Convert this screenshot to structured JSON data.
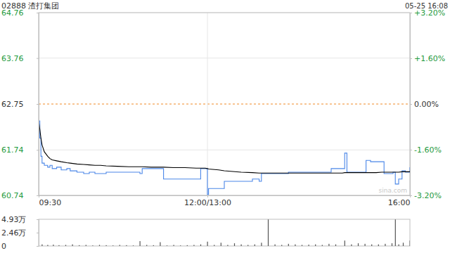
{
  "chart_data": [
    {
      "type": "line",
      "title": "02888 渣打集团",
      "subtitle": "05-25 16:08",
      "annotation": "sina.com",
      "x": [
        0,
        1,
        2,
        3,
        5,
        8,
        10,
        12,
        16,
        20,
        25,
        28,
        34,
        40,
        45,
        50,
        55,
        60,
        70,
        80,
        90,
        92,
        100,
        108,
        111,
        120,
        130,
        140,
        144,
        148,
        150,
        151,
        160,
        165,
        180,
        190,
        196,
        198,
        210,
        222,
        240,
        255,
        260,
        265,
        270,
        272,
        274,
        285,
        290,
        291,
        295,
        300,
        305,
        307,
        312,
        315,
        317,
        320,
        323,
        326,
        330
      ],
      "series": [
        {
          "color": "#4a86e8",
          "values": [
            62.38,
            62.0,
            61.6,
            61.45,
            61.4,
            61.36,
            61.4,
            61.33,
            61.36,
            61.3,
            61.33,
            61.28,
            61.25,
            61.22,
            61.25,
            61.22,
            61.22,
            61.25,
            61.25,
            61.25,
            61.22,
            61.33,
            61.33,
            61.33,
            61.1,
            61.1,
            61.1,
            61.1,
            61.33,
            61.33,
            60.76,
            60.89,
            60.89,
            61.05,
            61.05,
            61.1,
            61.05,
            61.22,
            61.22,
            61.25,
            61.25,
            61.25,
            61.33,
            61.33,
            61.33,
            61.67,
            61.25,
            61.25,
            61.25,
            61.51,
            61.48,
            61.48,
            61.48,
            61.22,
            61.22,
            61.25,
            60.99,
            61.1,
            61.28,
            61.25,
            61.36
          ]
        },
        {
          "color": "#000000",
          "values": [
            62.38,
            62.2,
            62.0,
            61.85,
            61.7,
            61.6,
            61.55,
            61.52,
            61.5,
            61.48,
            61.46,
            61.45,
            61.43,
            61.42,
            61.41,
            61.4,
            61.4,
            61.39,
            61.38,
            61.37,
            61.37,
            61.37,
            61.36,
            61.36,
            61.36,
            61.35,
            61.35,
            61.34,
            61.34,
            61.34,
            61.33,
            61.32,
            61.3,
            61.28,
            61.25,
            61.24,
            61.23,
            61.23,
            61.23,
            61.23,
            61.23,
            61.23,
            61.23,
            61.23,
            61.23,
            61.24,
            61.24,
            61.24,
            61.24,
            61.24,
            61.24,
            61.24,
            61.25,
            61.25,
            61.25,
            61.25,
            61.25,
            61.25,
            61.26,
            61.26,
            61.26
          ]
        }
      ],
      "xlim": [
        0,
        330
      ],
      "xticks": [
        {
          "value": 0,
          "label": "09:30"
        },
        {
          "value": 150,
          "label": "12:00/13:00"
        },
        {
          "value": 330,
          "label": "16:00"
        }
      ],
      "ylim": [
        60.74,
        64.76
      ],
      "yticks": [
        64.76,
        63.76,
        62.75,
        61.74,
        60.74
      ],
      "y2lim": [
        -3.2,
        3.2
      ],
      "y2ticks": [
        {
          "value": 3.2,
          "label": "+3.20%"
        },
        {
          "value": 1.6,
          "label": "+1.60%"
        },
        {
          "value": 0,
          "label": "0.00%"
        },
        {
          "value": -1.6,
          "label": "-1.60%"
        },
        {
          "value": -3.2,
          "label": "-3.20%"
        }
      ],
      "grid": true
    },
    {
      "type": "bar",
      "x": [
        0,
        3,
        8,
        13,
        18,
        24,
        30,
        36,
        42,
        48,
        54,
        60,
        66,
        72,
        78,
        84,
        90,
        96,
        102,
        108,
        114,
        120,
        126,
        132,
        138,
        144,
        150,
        156,
        162,
        168,
        174,
        180,
        186,
        192,
        198,
        204,
        210,
        216,
        222,
        228,
        234,
        240,
        246,
        252,
        258,
        264,
        272,
        278,
        284,
        290,
        296,
        302,
        308,
        314,
        317,
        320,
        324,
        330
      ],
      "values": [
        0.6,
        0.3,
        0.2,
        0.25,
        0.15,
        0.2,
        0.3,
        0.15,
        0.2,
        0.1,
        0.2,
        0.15,
        0.1,
        0.2,
        0.15,
        0.1,
        0.9,
        0.2,
        0.15,
        0.7,
        0.1,
        0.2,
        0.1,
        0.15,
        0.2,
        0.3,
        0.8,
        0.2,
        0.6,
        0.2,
        0.5,
        0.3,
        0.2,
        0.3,
        0.6,
        4.9,
        0.3,
        0.2,
        0.4,
        0.3,
        0.2,
        0.25,
        0.3,
        0.2,
        0.4,
        0.3,
        1.0,
        0.3,
        0.5,
        0.4,
        0.3,
        0.3,
        0.4,
        0.5,
        4.9,
        0.3,
        0.6,
        1.0
      ],
      "color": "#555555",
      "xlim": [
        0,
        330
      ],
      "ylim": [
        0,
        4.93
      ],
      "yticks": [
        {
          "value": 4.93,
          "label": "4.93万"
        },
        {
          "value": 2.46,
          "label": "2.46万"
        },
        0
      ],
      "tick_labels": "y"
    }
  ]
}
